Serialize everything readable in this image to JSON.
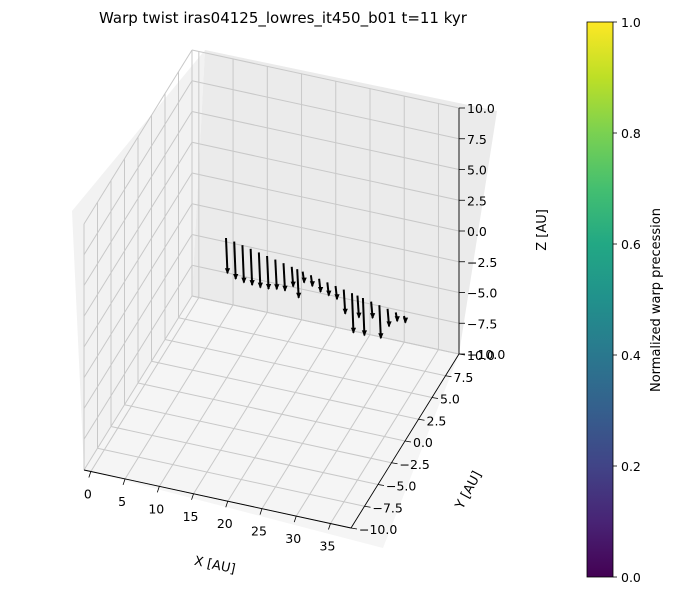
{
  "chart_data": {
    "type": "3d-quiver",
    "title": "Warp twist iras04125_lowres_it450_b01 t=11 kyr",
    "xlabel": "X [AU]",
    "ylabel": "Y [AU]",
    "zlabel": "Z [AU]",
    "xlim": [
      -1,
      38
    ],
    "ylim": [
      -10,
      10
    ],
    "zlim": [
      -10,
      10
    ],
    "x_ticks": [
      "0",
      "5",
      "10",
      "15",
      "20",
      "25",
      "30",
      "35"
    ],
    "y_ticks": [
      "−10.0",
      "−7.5",
      "−5.0",
      "−2.5",
      "0.0",
      "2.5",
      "5.0",
      "7.5",
      "10.0"
    ],
    "z_ticks": [
      "−10.0",
      "−7.5",
      "−5.0",
      "−2.5",
      "0.0",
      "2.5",
      "5.0",
      "7.5",
      "10.0"
    ],
    "grid": true,
    "arrow_color": "#000000",
    "colorbar": {
      "label": "Normalized warp precession",
      "colormap": "viridis",
      "range": [
        0,
        1
      ],
      "ticks": [
        "0.0",
        "0.2",
        "0.4",
        "0.6",
        "0.8",
        "1.0"
      ]
    },
    "arrows": [
      {
        "x": 1.0,
        "y": 0,
        "z": 0,
        "dz": -3.2
      },
      {
        "x": 2.5,
        "y": 0,
        "z": 0,
        "dz": -3.4
      },
      {
        "x": 4.0,
        "y": 0,
        "z": 0,
        "dz": -3.4
      },
      {
        "x": 5.5,
        "y": 0,
        "z": 0,
        "dz": -3.3
      },
      {
        "x": 7.0,
        "y": 0,
        "z": 0,
        "dz": -3.2
      },
      {
        "x": 8.5,
        "y": 0,
        "z": 0,
        "dz": -3.0
      },
      {
        "x": 10.0,
        "y": 0,
        "z": 0,
        "dz": -2.7
      },
      {
        "x": 11.5,
        "y": 0,
        "z": 0,
        "dz": -2.5
      },
      {
        "x": 13.0,
        "y": 0,
        "z": 0,
        "dz": -1.8
      },
      {
        "x": 14.0,
        "y": 0,
        "z": 0,
        "dz": -2.6
      },
      {
        "x": 15.0,
        "y": 0,
        "z": 0,
        "dz": -1.0
      },
      {
        "x": 16.5,
        "y": 0,
        "z": 0,
        "dz": -1.0
      },
      {
        "x": 18.0,
        "y": 0,
        "z": 0,
        "dz": -1.2
      },
      {
        "x": 19.5,
        "y": 0,
        "z": 0,
        "dz": -1.2
      },
      {
        "x": 21.0,
        "y": 0,
        "z": 0,
        "dz": -1.2
      },
      {
        "x": 22.5,
        "y": 0,
        "z": 0,
        "dz": -2.2
      },
      {
        "x": 24.0,
        "y": 0,
        "z": 0,
        "dz": -3.6
      },
      {
        "x": 25.0,
        "y": 0,
        "z": 0,
        "dz": -2.0
      },
      {
        "x": 26.0,
        "y": 0,
        "z": 0,
        "dz": -3.4
      },
      {
        "x": 27.5,
        "y": 0,
        "z": 0,
        "dz": -1.5
      },
      {
        "x": 29.0,
        "y": 0,
        "z": 0,
        "dz": -3.0
      },
      {
        "x": 30.5,
        "y": 0,
        "z": 0,
        "dz": -1.6
      },
      {
        "x": 32.0,
        "y": 0,
        "z": 0,
        "dz": -0.8
      },
      {
        "x": 33.5,
        "y": 0,
        "z": 0,
        "dz": -0.6
      }
    ]
  }
}
